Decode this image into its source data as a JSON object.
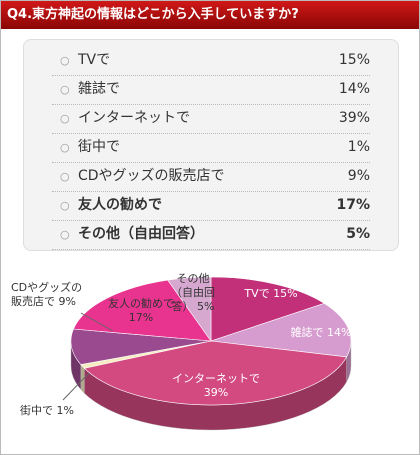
{
  "chart_data": {
    "type": "pie",
    "title": "Q4.東方神起の情報はどこから入手していますか?",
    "categories": [
      "TVで",
      "雑誌で",
      "インターネットで",
      "街中で",
      "CDやグッズの販売店で",
      "友人の勧めで",
      "その他（自由回答）"
    ],
    "values": [
      15,
      14,
      39,
      1,
      9,
      17,
      5
    ],
    "value_labels": [
      "15%",
      "14%",
      "39%",
      "1%",
      "9%",
      "17%",
      "5%"
    ],
    "colors": [
      "#c2307a",
      "#d79ccf",
      "#d24a80",
      "#f6ecc0",
      "#9a4a8e",
      "#e8348f",
      "#d6a8d0"
    ]
  }
}
